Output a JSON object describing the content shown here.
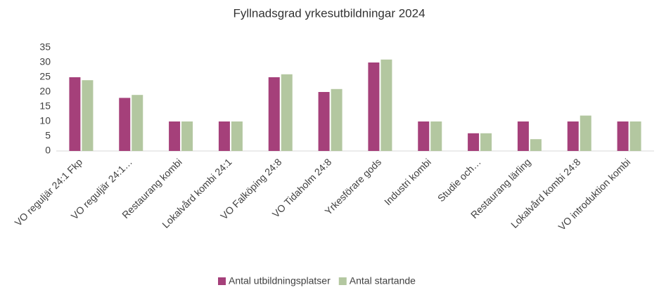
{
  "chart_data": {
    "type": "bar",
    "title": "Fyllnadsgrad yrkesutbildningar 2024",
    "categories": [
      "VO reguljär 24:1 Fkp",
      "VO reguljär 24:1…",
      "Restaurang kombi",
      "Lokalvård kombi 24:1",
      "VO Falköping 24:8",
      "VO Tidaholm 24:8",
      "Yrkesförare gods",
      "Industri kombi",
      "Studie och…",
      "Restaurang lärling",
      "Lokalvård kombi 24:8",
      "VO introduktion kombi"
    ],
    "series": [
      {
        "name": "Antal utbildningsplatser",
        "color": "#a5407a",
        "values": [
          25,
          18,
          10,
          10,
          25,
          20,
          30,
          10,
          6,
          10,
          10,
          10
        ]
      },
      {
        "name": "Antal startande",
        "color": "#b3c7a0",
        "values": [
          24,
          19,
          10,
          10,
          26,
          21,
          31,
          10,
          6,
          4,
          12,
          10
        ]
      }
    ],
    "ylim": [
      0,
      35
    ],
    "yticks": [
      0,
      5,
      10,
      15,
      20,
      25,
      30,
      35
    ],
    "grid": false,
    "legend": "bottom"
  }
}
